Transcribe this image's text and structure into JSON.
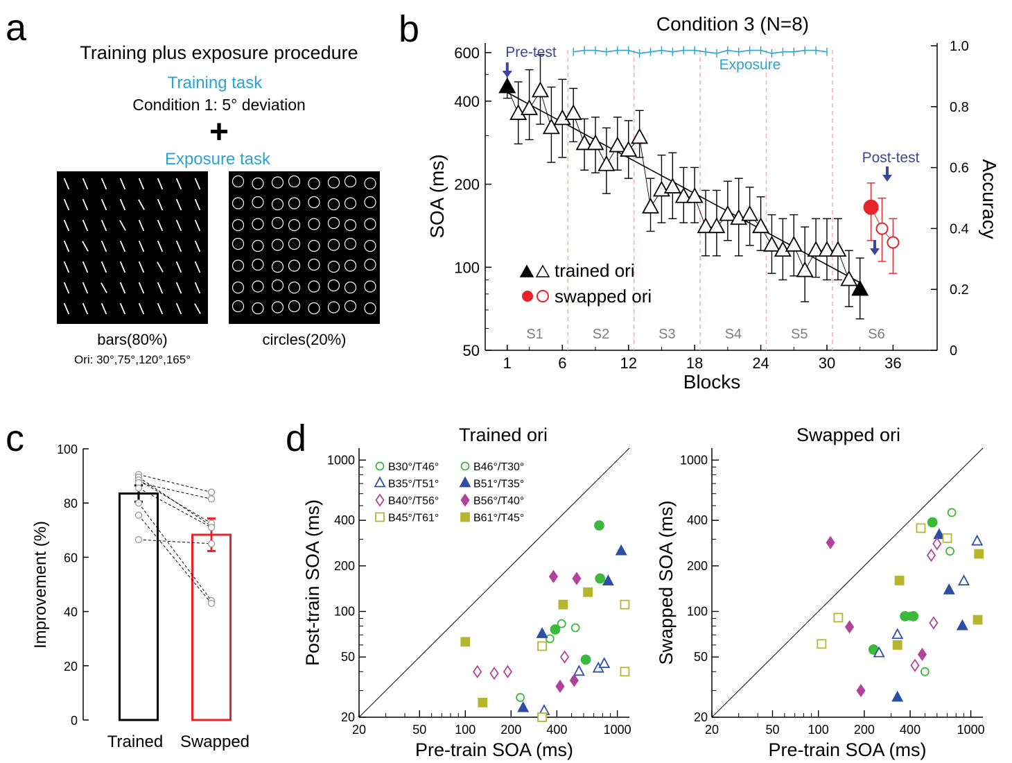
{
  "colors": {
    "cyan": "#29a3d6",
    "navy": "#3b479b",
    "red": "#e8242a",
    "pink": "#f4b3b3",
    "green": "#3cb93c",
    "blue": "#2d4fa3",
    "magenta": "#b0449a",
    "olive": "#b5b62e"
  },
  "panel_a": {
    "letter": "a",
    "title": "Training plus exposure procedure",
    "training_label": "Training task",
    "condition": "Condition 1: 5° deviation",
    "plus": "+",
    "exposure_label": "Exposure task",
    "bars_caption": "bars(80%)",
    "ori_caption": "Ori: 30°,75°,120°,165°",
    "circles_caption": "circles(20%)"
  },
  "chart_data": [
    {
      "panel": "b",
      "type": "line",
      "title": "Condition 3 (N=8)",
      "xlabel": "Blocks",
      "ylabel": "SOA (ms)",
      "y2label": "Accuracy",
      "xlim": [
        -1,
        40
      ],
      "ylim": [
        50,
        650
      ],
      "yscale": "log",
      "y2lim": [
        0,
        1.0
      ],
      "xticks": [
        1,
        6,
        12,
        18,
        24,
        30,
        36
      ],
      "yticks": [
        50,
        100,
        200,
        400,
        600
      ],
      "y2ticks": [
        0,
        0.2,
        0.4,
        0.6,
        0.8,
        1.0
      ],
      "y2ticklabels": [
        "0",
        "0.2",
        "0.4",
        "0.6",
        "0.8",
        "1.0"
      ],
      "session_labels": [
        "S1",
        "S2",
        "S3",
        "S4",
        "S5",
        "S6"
      ],
      "session_label_x": [
        3.5,
        9.5,
        15.5,
        21.5,
        27.5,
        34.5
      ],
      "session_boundaries": [
        6.5,
        12.5,
        18.5,
        24.5,
        30.5
      ],
      "annotations": {
        "pretest": "Pre-test",
        "posttest": "Post-test",
        "exposure": "Exposure"
      },
      "legend": [
        {
          "marks": "▲△",
          "label": "trained ori"
        },
        {
          "marks": "●○",
          "label": "swapped ori"
        }
      ],
      "series": [
        {
          "name": "trained ori",
          "x": [
            1,
            2,
            3,
            4,
            5,
            6,
            7,
            8,
            9,
            10,
            11,
            12,
            13,
            14,
            15,
            16,
            17,
            18,
            19,
            20,
            21,
            22,
            23,
            24,
            25,
            26,
            27,
            28,
            29,
            30,
            31,
            32,
            33
          ],
          "values": [
            450,
            360,
            375,
            435,
            320,
            345,
            360,
            280,
            280,
            235,
            275,
            265,
            295,
            165,
            190,
            195,
            180,
            180,
            140,
            140,
            155,
            150,
            155,
            140,
            120,
            115,
            120,
            97,
            115,
            115,
            115,
            90,
            83
          ],
          "err_low": [
            410,
            280,
            290,
            330,
            240,
            250,
            285,
            225,
            220,
            185,
            225,
            210,
            250,
            135,
            145,
            150,
            145,
            145,
            110,
            110,
            125,
            110,
            120,
            115,
            95,
            90,
            93,
            75,
            92,
            90,
            90,
            72,
            65
          ],
          "err_high": [
            510,
            470,
            520,
            590,
            450,
            480,
            445,
            345,
            350,
            320,
            350,
            340,
            370,
            210,
            255,
            260,
            230,
            230,
            190,
            190,
            205,
            210,
            195,
            180,
            155,
            150,
            155,
            140,
            150,
            150,
            150,
            115,
            108
          ]
        },
        {
          "name": "swapped ori",
          "x": [
            34,
            35,
            36
          ],
          "values": [
            165,
            138,
            123
          ],
          "err_low": [
            125,
            105,
            95
          ],
          "err_high": [
            202,
            178,
            150
          ]
        }
      ],
      "exposure_accuracy": {
        "x": [
          7,
          8,
          9,
          10,
          11,
          12,
          13,
          14,
          15,
          16,
          17,
          18,
          19,
          20,
          21,
          22,
          23,
          24,
          25,
          26,
          27,
          28,
          29,
          30
        ],
        "values": [
          0.98,
          0.985,
          0.985,
          0.98,
          0.985,
          0.985,
          0.975,
          0.98,
          0.985,
          0.98,
          0.985,
          0.985,
          0.98,
          0.975,
          0.985,
          0.98,
          0.985,
          0.985,
          0.975,
          0.98,
          0.98,
          0.985,
          0.985,
          0.98
        ]
      }
    },
    {
      "panel": "c",
      "type": "bar",
      "categories": [
        "Trained",
        "Swapped"
      ],
      "values": [
        83.5,
        68.3
      ],
      "err": [
        3.0,
        6.0
      ],
      "ylabel": "Improvement (%)",
      "ylim": [
        0,
        100
      ],
      "yticks": [
        0,
        20,
        40,
        60,
        80,
        100
      ],
      "subjects": [
        [
          90.5,
          84.0
        ],
        [
          89.5,
          71.5
        ],
        [
          88.5,
          72.5
        ],
        [
          87.5,
          81.5
        ],
        [
          85.5,
          71.0
        ],
        [
          80.0,
          44.0
        ],
        [
          75.5,
          43.0
        ],
        [
          66.5,
          65.0
        ]
      ]
    },
    {
      "panel": "d-left",
      "type": "scatter",
      "title": "Trained ori",
      "xlabel": "Pre-train SOA (ms)",
      "ylabel": "Post-train SOA (ms)",
      "xscale": "log",
      "yscale": "log",
      "xlim": [
        20,
        1200
      ],
      "ylim": [
        20,
        1200
      ],
      "xticks": [
        20,
        50,
        100,
        200,
        400,
        1000
      ],
      "yticks": [
        20,
        50,
        100,
        200,
        400,
        1000
      ],
      "legend": [
        {
          "label": "B30°/T46°",
          "color": "green",
          "shape": "circle",
          "filled": false
        },
        {
          "label": "B46°/T30°",
          "color": "green",
          "shape": "circle",
          "filled": false
        },
        {
          "label": "B35°/T51°",
          "color": "blue",
          "shape": "triangle",
          "filled": false
        },
        {
          "label": "B51°/T35°",
          "color": "blue",
          "shape": "triangle",
          "filled": true
        },
        {
          "label": "B40°/T56°",
          "color": "magenta",
          "shape": "diamond",
          "filled": false
        },
        {
          "label": "B56°/T40°",
          "color": "magenta",
          "shape": "diamond",
          "filled": true
        },
        {
          "label": "B45°/T61°",
          "color": "olive",
          "shape": "square",
          "filled": false
        },
        {
          "label": "B61°/T45°",
          "color": "olive",
          "shape": "square",
          "filled": true
        }
      ],
      "points": [
        {
          "x": 230,
          "y": 27,
          "color": "green",
          "shape": "circle",
          "filled": false
        },
        {
          "x": 360,
          "y": 66,
          "color": "green",
          "shape": "circle",
          "filled": false
        },
        {
          "x": 430,
          "y": 83,
          "color": "green",
          "shape": "circle",
          "filled": false
        },
        {
          "x": 530,
          "y": 78,
          "color": "green",
          "shape": "circle",
          "filled": false
        },
        {
          "x": 390,
          "y": 76,
          "color": "green",
          "shape": "circle",
          "filled": true
        },
        {
          "x": 620,
          "y": 48,
          "color": "green",
          "shape": "circle",
          "filled": true
        },
        {
          "x": 760,
          "y": 370,
          "color": "green",
          "shape": "circle",
          "filled": true
        },
        {
          "x": 770,
          "y": 165,
          "color": "green",
          "shape": "circle",
          "filled": true
        },
        {
          "x": 330,
          "y": 22,
          "color": "blue",
          "shape": "triangle",
          "filled": false
        },
        {
          "x": 560,
          "y": 40,
          "color": "blue",
          "shape": "triangle",
          "filled": false
        },
        {
          "x": 750,
          "y": 42,
          "color": "blue",
          "shape": "triangle",
          "filled": false
        },
        {
          "x": 820,
          "y": 45,
          "color": "blue",
          "shape": "triangle",
          "filled": false
        },
        {
          "x": 240,
          "y": 23,
          "color": "blue",
          "shape": "triangle",
          "filled": true
        },
        {
          "x": 320,
          "y": 71,
          "color": "blue",
          "shape": "triangle",
          "filled": true
        },
        {
          "x": 870,
          "y": 158,
          "color": "blue",
          "shape": "triangle",
          "filled": true
        },
        {
          "x": 1060,
          "y": 250,
          "color": "blue",
          "shape": "triangle",
          "filled": true
        },
        {
          "x": 120,
          "y": 40,
          "color": "magenta",
          "shape": "diamond",
          "filled": false
        },
        {
          "x": 155,
          "y": 39,
          "color": "magenta",
          "shape": "diamond",
          "filled": false
        },
        {
          "x": 190,
          "y": 40,
          "color": "magenta",
          "shape": "diamond",
          "filled": false
        },
        {
          "x": 450,
          "y": 50,
          "color": "magenta",
          "shape": "diamond",
          "filled": false
        },
        {
          "x": 420,
          "y": 32,
          "color": "magenta",
          "shape": "diamond",
          "filled": true
        },
        {
          "x": 520,
          "y": 35,
          "color": "magenta",
          "shape": "diamond",
          "filled": true
        },
        {
          "x": 380,
          "y": 170,
          "color": "magenta",
          "shape": "diamond",
          "filled": true
        },
        {
          "x": 540,
          "y": 165,
          "color": "magenta",
          "shape": "diamond",
          "filled": true
        },
        {
          "x": 320,
          "y": 20,
          "color": "olive",
          "shape": "square",
          "filled": false
        },
        {
          "x": 320,
          "y": 59,
          "color": "olive",
          "shape": "square",
          "filled": false
        },
        {
          "x": 1120,
          "y": 40,
          "color": "olive",
          "shape": "square",
          "filled": false
        },
        {
          "x": 1120,
          "y": 111,
          "color": "olive",
          "shape": "square",
          "filled": false
        },
        {
          "x": 100,
          "y": 63,
          "color": "olive",
          "shape": "square",
          "filled": true
        },
        {
          "x": 130,
          "y": 25,
          "color": "olive",
          "shape": "square",
          "filled": true
        },
        {
          "x": 440,
          "y": 111,
          "color": "olive",
          "shape": "square",
          "filled": true
        },
        {
          "x": 640,
          "y": 134,
          "color": "olive",
          "shape": "square",
          "filled": true
        }
      ]
    },
    {
      "panel": "d-right",
      "type": "scatter",
      "title": "Swapped ori",
      "xlabel": "Pre-train SOA (ms)",
      "ylabel": "Swapped SOA (ms)",
      "xscale": "log",
      "yscale": "log",
      "xlim": [
        20,
        1200
      ],
      "ylim": [
        20,
        1200
      ],
      "xticks": [
        20,
        50,
        100,
        200,
        400,
        1000
      ],
      "yticks": [
        20,
        50,
        100,
        200,
        400,
        1000
      ],
      "points": [
        {
          "x": 500,
          "y": 40,
          "color": "green",
          "shape": "circle",
          "filled": false
        },
        {
          "x": 730,
          "y": 250,
          "color": "green",
          "shape": "circle",
          "filled": false
        },
        {
          "x": 750,
          "y": 450,
          "color": "green",
          "shape": "circle",
          "filled": false
        },
        {
          "x": 400,
          "y": 93,
          "color": "green",
          "shape": "circle",
          "filled": false
        },
        {
          "x": 230,
          "y": 56,
          "color": "green",
          "shape": "circle",
          "filled": true
        },
        {
          "x": 370,
          "y": 93,
          "color": "green",
          "shape": "circle",
          "filled": true
        },
        {
          "x": 420,
          "y": 93,
          "color": "green",
          "shape": "circle",
          "filled": true
        },
        {
          "x": 560,
          "y": 388,
          "color": "green",
          "shape": "circle",
          "filled": true
        },
        {
          "x": 250,
          "y": 53,
          "color": "blue",
          "shape": "triangle",
          "filled": false
        },
        {
          "x": 330,
          "y": 70,
          "color": "blue",
          "shape": "triangle",
          "filled": false
        },
        {
          "x": 900,
          "y": 158,
          "color": "blue",
          "shape": "triangle",
          "filled": false
        },
        {
          "x": 1100,
          "y": 290,
          "color": "blue",
          "shape": "triangle",
          "filled": false
        },
        {
          "x": 330,
          "y": 27,
          "color": "blue",
          "shape": "triangle",
          "filled": true
        },
        {
          "x": 620,
          "y": 320,
          "color": "blue",
          "shape": "triangle",
          "filled": true
        },
        {
          "x": 720,
          "y": 138,
          "color": "blue",
          "shape": "triangle",
          "filled": true
        },
        {
          "x": 880,
          "y": 80,
          "color": "blue",
          "shape": "triangle",
          "filled": true
        },
        {
          "x": 430,
          "y": 44,
          "color": "magenta",
          "shape": "diamond",
          "filled": false
        },
        {
          "x": 550,
          "y": 235,
          "color": "magenta",
          "shape": "diamond",
          "filled": false
        },
        {
          "x": 570,
          "y": 84,
          "color": "magenta",
          "shape": "diamond",
          "filled": false
        },
        {
          "x": 600,
          "y": 280,
          "color": "magenta",
          "shape": "diamond",
          "filled": false
        },
        {
          "x": 120,
          "y": 285,
          "color": "magenta",
          "shape": "diamond",
          "filled": true
        },
        {
          "x": 160,
          "y": 79,
          "color": "magenta",
          "shape": "diamond",
          "filled": true
        },
        {
          "x": 190,
          "y": 30,
          "color": "magenta",
          "shape": "diamond",
          "filled": true
        },
        {
          "x": 480,
          "y": 52,
          "color": "magenta",
          "shape": "diamond",
          "filled": true
        },
        {
          "x": 105,
          "y": 61,
          "color": "olive",
          "shape": "square",
          "filled": false
        },
        {
          "x": 135,
          "y": 91,
          "color": "olive",
          "shape": "square",
          "filled": false
        },
        {
          "x": 470,
          "y": 355,
          "color": "olive",
          "shape": "square",
          "filled": false
        },
        {
          "x": 700,
          "y": 305,
          "color": "olive",
          "shape": "square",
          "filled": false
        },
        {
          "x": 330,
          "y": 60,
          "color": "olive",
          "shape": "square",
          "filled": true
        },
        {
          "x": 340,
          "y": 160,
          "color": "olive",
          "shape": "square",
          "filled": true
        },
        {
          "x": 1110,
          "y": 88,
          "color": "olive",
          "shape": "square",
          "filled": true
        },
        {
          "x": 1130,
          "y": 240,
          "color": "olive",
          "shape": "square",
          "filled": true
        }
      ]
    }
  ]
}
